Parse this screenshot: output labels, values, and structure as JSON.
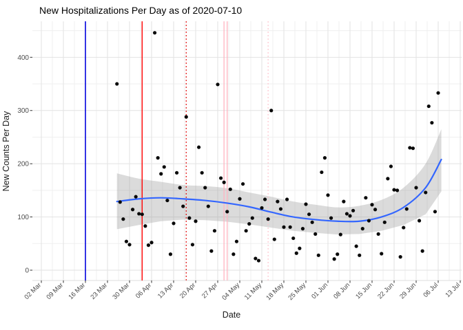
{
  "title": "New Hospitalizations Per Day as of 2020-07-10",
  "chart_data": {
    "type": "scatter",
    "title": "New Hospitalizations Per Day as of 2020-07-10",
    "xlabel": "Date",
    "ylabel": "New Counts Per Day",
    "legend": false,
    "grid": true,
    "background": "#ffffff",
    "point_color": "#0a0a0a",
    "x_start_date": "2020-03-02",
    "x_tick_labels": [
      "02 Mar",
      "09 Mar",
      "16 Mar",
      "23 Mar",
      "30 Mar",
      "06 Apr",
      "13 Apr",
      "20 Apr",
      "27 Apr",
      "04 May",
      "11 May",
      "18 May",
      "25 May",
      "01 Jun",
      "08 Jun",
      "15 Jun",
      "22 Jun",
      "29 Jun",
      "06 Jul",
      "13 Jul"
    ],
    "y_tick_labels": [
      "0",
      "100",
      "200",
      "300",
      "400"
    ],
    "y_major": [
      0,
      100,
      200,
      300,
      400
    ],
    "y_minor": [
      50,
      150,
      250,
      350,
      450
    ],
    "ylim": [
      -20,
      468
    ],
    "points": [
      [
        "2020-03-26",
        350
      ],
      [
        "2020-03-27",
        128
      ],
      [
        "2020-03-28",
        96
      ],
      [
        "2020-03-29",
        54
      ],
      [
        "2020-03-30",
        48
      ],
      [
        "2020-03-31",
        114
      ],
      [
        "2020-04-01",
        138
      ],
      [
        "2020-04-02",
        106
      ],
      [
        "2020-04-03",
        105
      ],
      [
        "2020-04-04",
        83
      ],
      [
        "2020-04-05",
        47
      ],
      [
        "2020-04-06",
        52
      ],
      [
        "2020-04-07",
        446
      ],
      [
        "2020-04-08",
        211
      ],
      [
        "2020-04-09",
        181
      ],
      [
        "2020-04-10",
        194
      ],
      [
        "2020-04-11",
        131
      ],
      [
        "2020-04-12",
        30
      ],
      [
        "2020-04-13",
        88
      ],
      [
        "2020-04-14",
        183
      ],
      [
        "2020-04-15",
        155
      ],
      [
        "2020-04-16",
        120
      ],
      [
        "2020-04-17",
        288
      ],
      [
        "2020-04-18",
        98
      ],
      [
        "2020-04-19",
        48
      ],
      [
        "2020-04-20",
        92
      ],
      [
        "2020-04-21",
        231
      ],
      [
        "2020-04-22",
        183
      ],
      [
        "2020-04-23",
        155
      ],
      [
        "2020-04-24",
        120
      ],
      [
        "2020-04-25",
        36
      ],
      [
        "2020-04-26",
        74
      ],
      [
        "2020-04-27",
        349
      ],
      [
        "2020-04-28",
        173
      ],
      [
        "2020-04-29",
        165
      ],
      [
        "2020-04-30",
        110
      ],
      [
        "2020-05-01",
        152
      ],
      [
        "2020-05-02",
        30
      ],
      [
        "2020-05-03",
        54
      ],
      [
        "2020-05-04",
        134
      ],
      [
        "2020-05-05",
        162
      ],
      [
        "2020-05-06",
        74
      ],
      [
        "2020-05-07",
        87
      ],
      [
        "2020-05-08",
        98
      ],
      [
        "2020-05-09",
        22
      ],
      [
        "2020-05-10",
        18
      ],
      [
        "2020-05-11",
        117
      ],
      [
        "2020-05-12",
        133
      ],
      [
        "2020-05-13",
        96
      ],
      [
        "2020-05-14",
        300
      ],
      [
        "2020-05-15",
        58
      ],
      [
        "2020-05-16",
        129
      ],
      [
        "2020-05-17",
        115
      ],
      [
        "2020-05-18",
        81
      ],
      [
        "2020-05-19",
        133
      ],
      [
        "2020-05-20",
        81
      ],
      [
        "2020-05-21",
        60
      ],
      [
        "2020-05-22",
        32
      ],
      [
        "2020-05-23",
        41
      ],
      [
        "2020-05-24",
        78
      ],
      [
        "2020-05-25",
        124
      ],
      [
        "2020-05-26",
        105
      ],
      [
        "2020-05-27",
        90
      ],
      [
        "2020-05-28",
        68
      ],
      [
        "2020-05-29",
        28
      ],
      [
        "2020-05-30",
        184
      ],
      [
        "2020-05-31",
        211
      ],
      [
        "2020-06-01",
        141
      ],
      [
        "2020-06-02",
        98
      ],
      [
        "2020-06-03",
        21
      ],
      [
        "2020-06-04",
        30
      ],
      [
        "2020-06-05",
        67
      ],
      [
        "2020-06-06",
        129
      ],
      [
        "2020-06-07",
        106
      ],
      [
        "2020-06-08",
        102
      ],
      [
        "2020-06-09",
        112
      ],
      [
        "2020-06-10",
        45
      ],
      [
        "2020-06-11",
        28
      ],
      [
        "2020-06-12",
        78
      ],
      [
        "2020-06-13",
        136
      ],
      [
        "2020-06-14",
        93
      ],
      [
        "2020-06-15",
        123
      ],
      [
        "2020-06-16",
        114
      ],
      [
        "2020-06-17",
        68
      ],
      [
        "2020-06-18",
        31
      ],
      [
        "2020-06-19",
        90
      ],
      [
        "2020-06-20",
        172
      ],
      [
        "2020-06-21",
        195
      ],
      [
        "2020-06-22",
        151
      ],
      [
        "2020-06-23",
        150
      ],
      [
        "2020-06-24",
        25
      ],
      [
        "2020-06-25",
        80
      ],
      [
        "2020-06-26",
        115
      ],
      [
        "2020-06-27",
        230
      ],
      [
        "2020-06-28",
        229
      ],
      [
        "2020-06-29",
        155
      ],
      [
        "2020-06-30",
        93
      ],
      [
        "2020-07-01",
        36
      ],
      [
        "2020-07-02",
        146
      ],
      [
        "2020-07-03",
        308
      ],
      [
        "2020-07-04",
        277
      ],
      [
        "2020-07-05",
        110
      ],
      [
        "2020-07-06",
        333
      ]
    ],
    "smooth_line": {
      "color": "#3366FF",
      "width": 2.2,
      "points": [
        [
          "2020-03-26",
          129
        ],
        [
          "2020-04-02",
          134
        ],
        [
          "2020-04-09",
          136
        ],
        [
          "2020-04-16",
          134
        ],
        [
          "2020-04-23",
          131
        ],
        [
          "2020-04-30",
          126
        ],
        [
          "2020-05-07",
          119
        ],
        [
          "2020-05-14",
          109
        ],
        [
          "2020-05-21",
          100
        ],
        [
          "2020-05-28",
          95
        ],
        [
          "2020-06-04",
          92
        ],
        [
          "2020-06-11",
          92
        ],
        [
          "2020-06-18",
          100
        ],
        [
          "2020-06-25",
          118
        ],
        [
          "2020-07-02",
          155
        ],
        [
          "2020-07-07",
          208
        ]
      ]
    },
    "confidence_band": {
      "color": "#999999",
      "opacity": 0.35,
      "points": [
        [
          "2020-03-26",
          77,
          182
        ],
        [
          "2020-04-02",
          85,
          172
        ],
        [
          "2020-04-09",
          92,
          166
        ],
        [
          "2020-04-16",
          95,
          160
        ],
        [
          "2020-04-23",
          94,
          158
        ],
        [
          "2020-04-30",
          91,
          154
        ],
        [
          "2020-05-07",
          86,
          146
        ],
        [
          "2020-05-14",
          80,
          138
        ],
        [
          "2020-05-21",
          74,
          129
        ],
        [
          "2020-05-28",
          70,
          123
        ],
        [
          "2020-06-04",
          67,
          118
        ],
        [
          "2020-06-11",
          68,
          121
        ],
        [
          "2020-06-18",
          74,
          132
        ],
        [
          "2020-06-25",
          85,
          155
        ],
        [
          "2020-07-02",
          105,
          200
        ],
        [
          "2020-07-07",
          148,
          265
        ]
      ]
    },
    "vlines": [
      {
        "date": "2020-03-16",
        "color": "#0000DD",
        "style": "solid",
        "width": 1.6
      },
      {
        "date": "2020-04-03",
        "color": "#FF0000",
        "style": "solid",
        "width": 1.4
      },
      {
        "date": "2020-04-17",
        "color": "#E00000",
        "style": "dotted",
        "width": 1.3
      },
      {
        "date": "2020-04-29",
        "color": "#FFB3C0",
        "style": "solid",
        "width": 1.3
      },
      {
        "date": "2020-04-30",
        "color": "#FFB3C0",
        "style": "solid",
        "width": 1.3
      },
      {
        "date": "2020-05-13",
        "color": "#FFC2CC",
        "style": "dotted",
        "width": 1.3
      }
    ],
    "colors": {
      "grid_major": "#E2E2E2",
      "grid_minor": "#EFEFEF",
      "axis_line": "#DCDCDC",
      "tick_mark": "#333333",
      "tick_label": "#4a4a4a"
    }
  }
}
